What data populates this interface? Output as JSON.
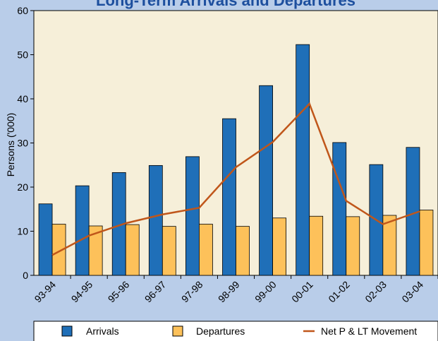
{
  "chart_data": {
    "type": "bar",
    "title": "Long-Term Arrivals and Departures",
    "y_label": "Persons ('000)",
    "categories": [
      "93-94",
      "94-95",
      "95-96",
      "96-97",
      "97-98",
      "98-99",
      "99-00",
      "00-01",
      "01-02",
      "02-03",
      "03-04"
    ],
    "series": [
      {
        "name": "Arrivals",
        "color": "#1f6fb8",
        "values": [
          16.2,
          20.3,
          23.3,
          24.9,
          26.9,
          35.5,
          43,
          52.3,
          30.1,
          25.1,
          29
        ]
      },
      {
        "name": "Departures",
        "color": "#fdc15a",
        "values": [
          11.6,
          11.2,
          11.5,
          11.1,
          11.6,
          11.1,
          13,
          13.4,
          13.3,
          13.6,
          14.8
        ]
      },
      {
        "name": "Net P & LT Movement",
        "color": "#c0561a",
        "type": "line",
        "values": [
          4.6,
          9,
          11.8,
          13.8,
          15.3,
          24.5,
          30.2,
          38.9,
          16.9,
          11.6,
          14.5
        ]
      }
    ],
    "ylim": [
      0,
      60
    ],
    "yticks": [
      0,
      10,
      20,
      30,
      40,
      50,
      60
    ],
    "legend": "bottom"
  }
}
